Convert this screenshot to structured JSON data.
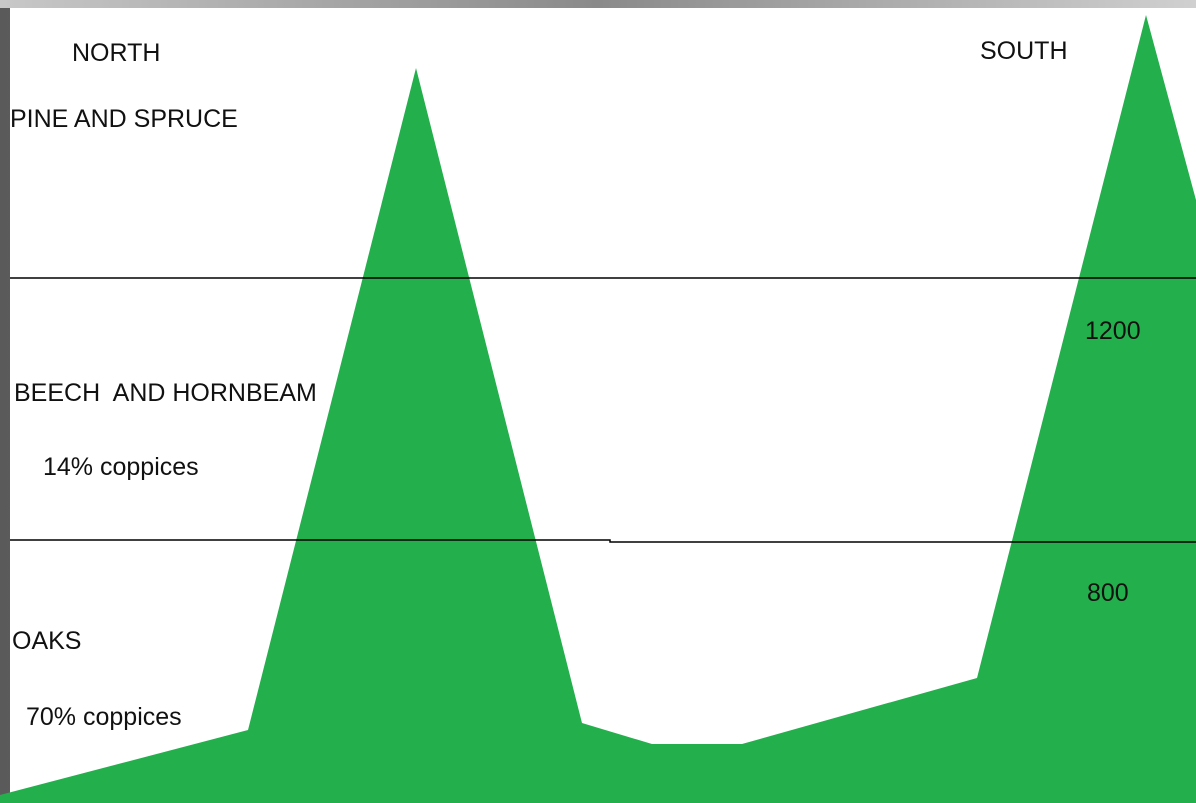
{
  "header": {
    "north": "NORTH",
    "south": "SOUTH"
  },
  "zones": [
    {
      "label": "PINE AND SPRUCE"
    },
    {
      "label": "BEECH  AND HORNBEAM",
      "note": "14% coppices"
    },
    {
      "label": "OAKS",
      "note": "70% coppices"
    }
  ],
  "elevations": [
    1200,
    800
  ]
}
